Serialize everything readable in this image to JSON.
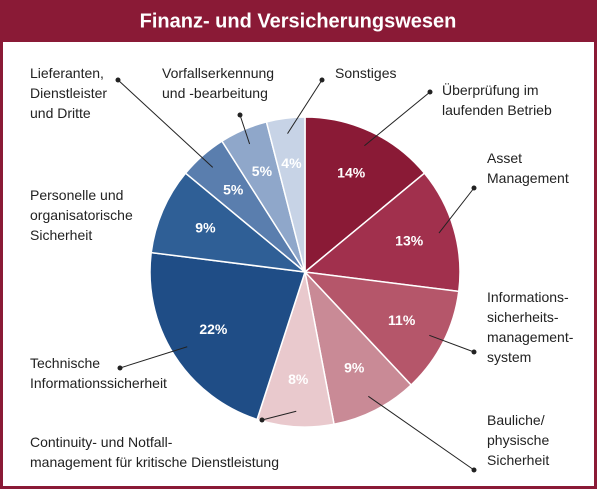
{
  "chart_data": {
    "type": "pie",
    "title": "Finanz- und Versicherungswesen",
    "categories": [
      "Überprüfung im\nlaufenden Betrieb",
      "Asset\nManagement",
      "Informations-\nsicherheits-\nmanagement-\nsystem",
      "Bauliche/\nphysische\nSicherheit",
      "Continuity- und Notfall-\nmanagement für kritische Dienstleistung",
      "Technische\nInformationssicherheit",
      "Personelle und\norganisatorische\nSicherheit",
      "Lieferanten,\nDienstleister\nund Dritte",
      "Vorfallserkennung\nund -bearbeitung",
      "Sonstiges"
    ],
    "values": [
      14,
      13,
      11,
      9,
      8,
      22,
      9,
      5,
      5,
      4
    ],
    "value_labels": [
      "14%",
      "13%",
      "11%",
      "9%",
      "8%",
      "22%",
      "9%",
      "5%",
      "5%",
      "4%"
    ],
    "colors": [
      "#8a1a36",
      "#a1304d",
      "#b5566a",
      "#c98a96",
      "#e9c9cd",
      "#1f4d86",
      "#2f5f96",
      "#5a7eae",
      "#8fa7ca",
      "#c7d3e6"
    ]
  }
}
